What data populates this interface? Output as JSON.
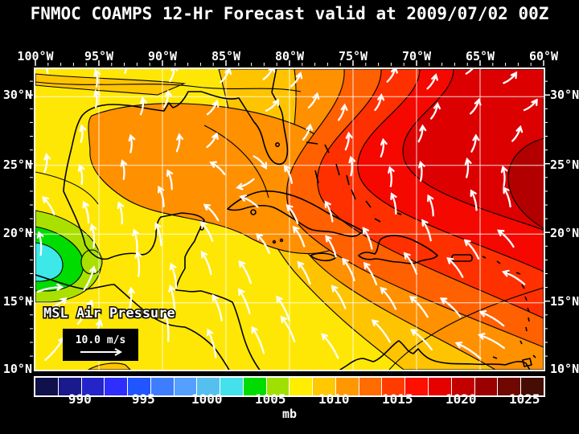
{
  "title": "FNMOC COAMPS 12-Hr Forecast valid at 2009/07/02 00Z",
  "axes": {
    "top_labels": [
      "100°W",
      "95°W",
      "90°W",
      "85°W",
      "80°W",
      "75°W",
      "70°W",
      "65°W",
      "60°W"
    ],
    "left_labels": [
      "30°N",
      "25°N",
      "20°N",
      "15°N",
      "10°N"
    ],
    "right_labels": [
      "30°N",
      "25°N",
      "20°N",
      "15°N",
      "10°N"
    ]
  },
  "map": {
    "field_label": "MSL Air Pressure",
    "wind_scale": {
      "label": "10.0 m/s"
    }
  },
  "colorbar": {
    "unit": "mb",
    "tick_labels": [
      "990",
      "995",
      "1000",
      "1005",
      "1010",
      "1015",
      "1020",
      "1025"
    ],
    "tick_positions_pct": [
      8.75,
      21.25,
      33.75,
      46.25,
      58.75,
      71.25,
      83.75,
      96.25
    ],
    "cells": [
      "#10104a",
      "#1a1a8c",
      "#2424c8",
      "#2e2eff",
      "#2055ff",
      "#3f7dff",
      "#55a0ff",
      "#55c0f0",
      "#44e0ec",
      "#00dc00",
      "#a0e000",
      "#ffee00",
      "#ffc800",
      "#ff9800",
      "#ff6c00",
      "#ff3c00",
      "#ff0f00",
      "#e60000",
      "#c30000",
      "#9b0000",
      "#6e0800",
      "#460d05"
    ],
    "range_mb": [
      986.5,
      1026.5
    ]
  },
  "colors": {
    "background": "#000000",
    "frame": "#ffffff",
    "graticule": "#ffffff",
    "coastline": "#000000",
    "wind_arrows": "#ffffff"
  }
}
